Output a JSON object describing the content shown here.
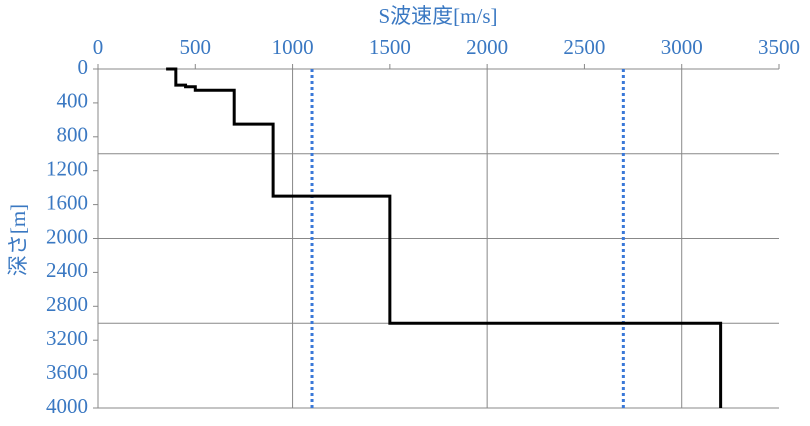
{
  "chart_data": {
    "type": "line",
    "x_label": "S波速度[m/s]",
    "y_label": "深さ[m]",
    "xlim": [
      0,
      3500
    ],
    "xticks": [
      0,
      500,
      1000,
      1500,
      2000,
      2500,
      3000,
      3500
    ],
    "ylim": [
      0,
      4000
    ],
    "yticks": [
      0,
      400,
      800,
      1200,
      1600,
      2000,
      2400,
      2800,
      3200,
      3600,
      4000
    ],
    "y_inverted": true,
    "x_axis_position": "top",
    "x_grid": [
      1000,
      2000,
      3000
    ],
    "y_grid": [
      1000,
      2000,
      3000,
      4000
    ],
    "series": [
      {
        "color": "#000000",
        "x": [
          350,
          400,
          400,
          450,
          450,
          500,
          500,
          700,
          700,
          900,
          900,
          1500,
          1500,
          3200,
          3200
        ],
        "values": [
          0,
          0,
          190,
          190,
          210,
          210,
          250,
          250,
          650,
          650,
          1500,
          1500,
          3000,
          3000,
          4000
        ]
      }
    ],
    "reference_lines": {
      "color": "#3a78d8",
      "values": [
        1100,
        2700
      ]
    }
  }
}
